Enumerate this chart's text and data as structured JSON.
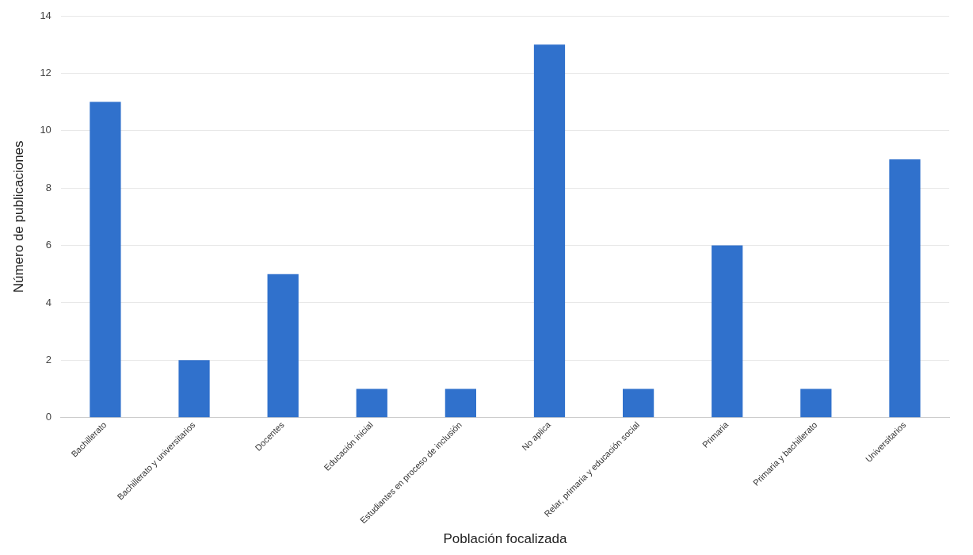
{
  "chart_data": {
    "type": "bar",
    "xlabel": "Población focalizada",
    "ylabel": "Número de publicaciones",
    "categories": [
      "Bachillerato",
      "Bachillerato y universitarios",
      "Docentes",
      "Educación inicial",
      "Estudiantes en proceso de inclusión",
      "No aplica",
      "Relar, primaria y educación social",
      "Primaria",
      "Primaria y bachillerato",
      "Universitarios"
    ],
    "values": [
      11,
      2,
      5,
      1,
      1,
      13,
      1,
      6,
      1,
      9
    ],
    "color": "#3071cc",
    "ylim": [
      0,
      14
    ],
    "yticks": [
      0,
      2,
      4,
      6,
      8,
      10,
      12,
      14
    ],
    "grid": "y",
    "legend": false
  }
}
